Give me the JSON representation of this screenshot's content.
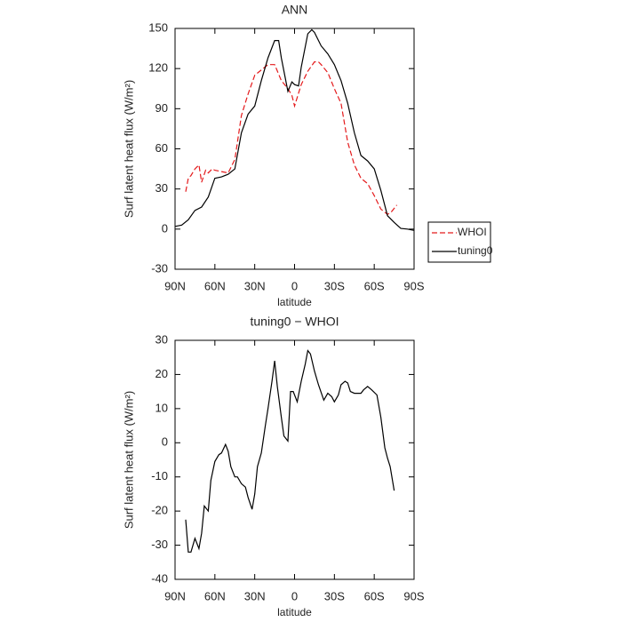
{
  "chart_data": [
    {
      "type": "line",
      "title": "ANN",
      "xlabel": "latitude",
      "ylabel": "Surf latent heat flux (W/m²)",
      "xlim": [
        90,
        -90
      ],
      "xticks": [
        {
          "value": 90,
          "label": "90N"
        },
        {
          "value": 60,
          "label": "60N"
        },
        {
          "value": 30,
          "label": "30N"
        },
        0,
        {
          "value": -30,
          "label": "30S"
        },
        {
          "value": -60,
          "label": "60S"
        },
        {
          "value": -90,
          "label": "90S"
        }
      ],
      "ylim": [
        -30,
        150
      ],
      "yticks": [
        -30,
        0,
        30,
        60,
        90,
        120,
        150
      ],
      "legend": "right",
      "series": [
        {
          "name": "WHOI",
          "color": "#e41a1c",
          "linestyle": "dashed",
          "x": [
            82,
            80,
            78,
            75,
            72,
            70,
            67,
            65,
            62,
            60,
            55,
            50,
            45,
            40,
            35,
            30,
            25,
            20,
            15,
            10,
            5,
            2,
            0,
            -5,
            -10,
            -15,
            -18,
            -20,
            -25,
            -30,
            -35,
            -40,
            -45,
            -50,
            -55,
            -60,
            -65,
            -70,
            -73,
            -77
          ],
          "values": [
            28,
            38,
            40,
            45,
            48,
            35,
            44,
            42,
            45,
            44,
            43,
            42,
            52,
            85,
            101,
            115,
            119,
            123,
            123,
            111,
            105,
            100,
            92,
            108,
            118,
            125,
            125,
            123,
            117,
            105,
            94,
            65,
            48,
            38,
            34,
            25,
            15,
            11,
            13,
            18
          ]
        },
        {
          "name": "tuning0",
          "color": "#000000",
          "linestyle": "solid",
          "x": [
            90,
            85,
            80,
            75,
            70,
            65,
            60,
            55,
            50,
            45,
            40,
            35,
            30,
            25,
            20,
            15,
            12,
            10,
            5,
            2,
            0,
            -3,
            -5,
            -10,
            -13,
            -15,
            -20,
            -25,
            -30,
            -35,
            -40,
            -45,
            -50,
            -55,
            -60,
            -65,
            -70,
            -75,
            -80,
            -85,
            -90
          ],
          "values": [
            2,
            3,
            7,
            14,
            16.5,
            24,
            38,
            39,
            41,
            45,
            72,
            86,
            92,
            111,
            128,
            141,
            141,
            128,
            103,
            110,
            108,
            107,
            121,
            146,
            149,
            147,
            137,
            131,
            123,
            111,
            94,
            72,
            55,
            51,
            45,
            29,
            10,
            5,
            0.5,
            0,
            -1
          ]
        }
      ]
    },
    {
      "type": "line",
      "title": "tuning0 − WHOI",
      "xlabel": "latitude",
      "ylabel": "Surf latent heat flux (W/m²)",
      "xlim": [
        90,
        -90
      ],
      "xticks": [
        {
          "value": 90,
          "label": "90N"
        },
        {
          "value": 60,
          "label": "60N"
        },
        {
          "value": 30,
          "label": "30N"
        },
        0,
        {
          "value": -30,
          "label": "30S"
        },
        {
          "value": -60,
          "label": "60S"
        },
        {
          "value": -90,
          "label": "90S"
        }
      ],
      "ylim": [
        -40,
        30
      ],
      "yticks": [
        -40,
        -30,
        -20,
        -10,
        0,
        10,
        20,
        30
      ],
      "series": [
        {
          "color": "#000000",
          "linestyle": "solid",
          "x": [
            82,
            80,
            78,
            75,
            72,
            70,
            68,
            65,
            63,
            60,
            57,
            55,
            52,
            50,
            48,
            45,
            43,
            40,
            37,
            35,
            32,
            30,
            28,
            25,
            22,
            20,
            17,
            15,
            13,
            10,
            8,
            5,
            3,
            1,
            -2,
            -5,
            -8,
            -10,
            -12,
            -15,
            -18,
            -22,
            -25,
            -28,
            -30,
            -33,
            -35,
            -38,
            -40,
            -42,
            -45,
            -50,
            -52,
            -55,
            -58,
            -62,
            -65,
            -68,
            -70,
            -72,
            -75
          ],
          "values": [
            -22.5,
            -32,
            -32,
            -28,
            -31,
            -26.5,
            -18.5,
            -20,
            -11,
            -5.5,
            -3.5,
            -3,
            -0.5,
            -2.5,
            -7,
            -10,
            -10,
            -12,
            -13,
            -16,
            -19.5,
            -15,
            -7,
            -3,
            5,
            10,
            18,
            24,
            16.5,
            7.5,
            2,
            0.5,
            15,
            15,
            12,
            18,
            23,
            27,
            26,
            21,
            17,
            12.5,
            14.5,
            13.5,
            12,
            14,
            17,
            18,
            17.5,
            15,
            14.5,
            14.5,
            15.5,
            16.5,
            15.5,
            14,
            7.5,
            -1.5,
            -4.5,
            -7,
            -14
          ]
        }
      ]
    }
  ]
}
